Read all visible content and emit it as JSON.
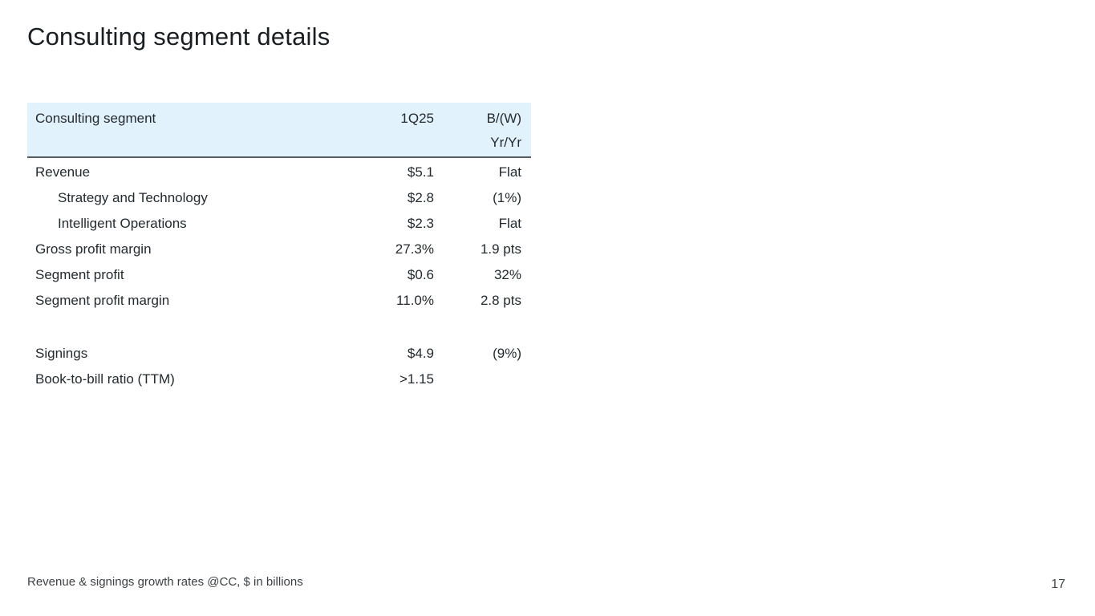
{
  "slide": {
    "title": "Consulting segment details",
    "footnote": "Revenue & signings growth rates @CC, $ in billions",
    "page_number": "17"
  },
  "table": {
    "header": {
      "label": "Consulting segment",
      "period": "1Q25",
      "change_line1": "B/(W)",
      "change_line2": "Yr/Yr"
    },
    "rows": [
      {
        "label": "Revenue",
        "value": "$5.1",
        "change": "Flat",
        "indent": false
      },
      {
        "label": "Strategy and Technology",
        "value": "$2.8",
        "change": "(1%)",
        "indent": true
      },
      {
        "label": "Intelligent Operations",
        "value": "$2.3",
        "change": "Flat",
        "indent": true
      },
      {
        "label": "Gross profit margin",
        "value": "27.3%",
        "change": "1.9 pts",
        "indent": false
      },
      {
        "label": "Segment profit",
        "value": "$0.6",
        "change": "32%",
        "indent": false
      },
      {
        "label": "Segment profit margin",
        "value": "11.0%",
        "change": "2.8 pts",
        "indent": false
      },
      {
        "spacer": true
      },
      {
        "label": "Signings",
        "value": "$4.9",
        "change": "(9%)",
        "indent": false
      },
      {
        "label": "Book-to-bill ratio (TTM)",
        "value": ">1.15",
        "change": "",
        "indent": false
      }
    ],
    "colors": {
      "header_bg": "#e2f2fc",
      "divider": "#565b60",
      "text": "#242a2e"
    }
  }
}
